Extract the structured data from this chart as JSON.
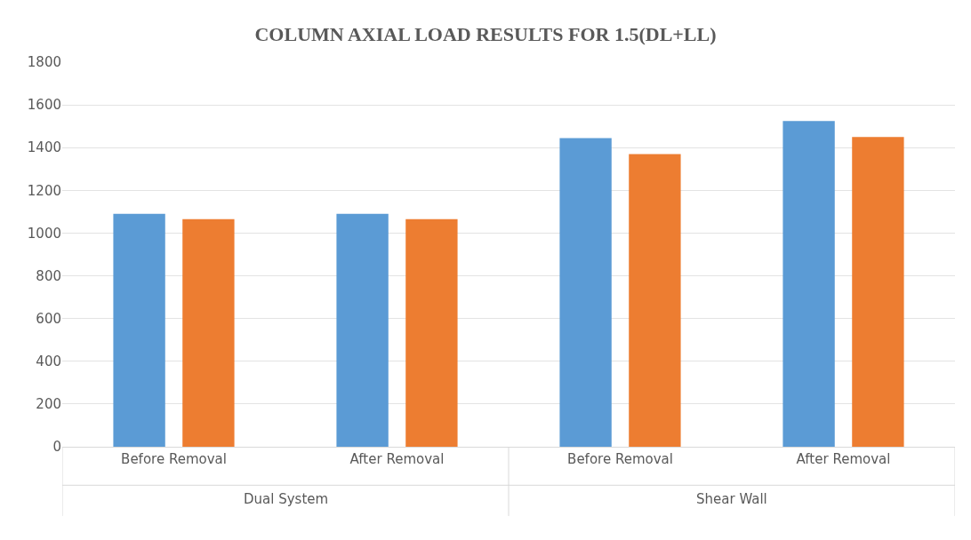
{
  "chart_data": {
    "type": "bar",
    "title": "COLUMN AXIAL LOAD RESULTS FOR 1.5(DL+LL)",
    "categories": [
      "Before Removal",
      "After Removal",
      "Before Removal",
      "After Removal"
    ],
    "series": [
      {
        "color": "#5b9bd5",
        "values": [
          1090,
          1090,
          1445,
          1525
        ]
      },
      {
        "color": "#ed7d31",
        "values": [
          1065,
          1065,
          1370,
          1450
        ]
      }
    ],
    "ylim": [
      0,
      1800
    ],
    "yticks": [
      0,
      200,
      400,
      600,
      800,
      1000,
      1200,
      1400,
      1600,
      1800
    ],
    "grid": "y",
    "annotations": [
      "Dual System",
      "Shear Wall"
    ]
  }
}
